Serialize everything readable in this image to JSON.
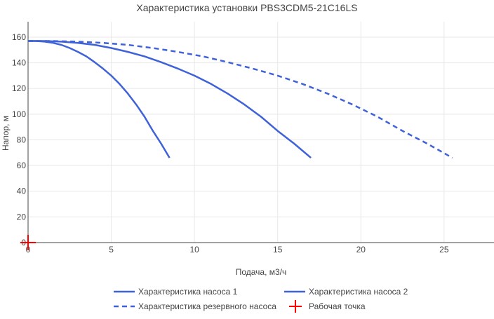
{
  "chart_data": {
    "type": "line",
    "title": "Характеристика установки PBS3CDM5-21C16LS",
    "xlabel": "Подача, м3/ч",
    "ylabel": "Напор, м",
    "xlim": [
      0,
      28
    ],
    "ylim": [
      0,
      172
    ],
    "xticks": [
      0,
      5,
      10,
      15,
      20,
      25
    ],
    "yticks": [
      0,
      20,
      40,
      60,
      80,
      100,
      120,
      140,
      160
    ],
    "grid": true,
    "legend_position": "bottom",
    "series": [
      {
        "name": "Характеристика насоса 1",
        "style": "solid",
        "color": "#3f62d8",
        "x": [
          0,
          0.5,
          1,
          1.5,
          2,
          2.5,
          3,
          3.5,
          4,
          4.5,
          5,
          5.5,
          6,
          6.5,
          7,
          7.5,
          8,
          8.5
        ],
        "y": [
          157,
          157,
          156.5,
          155.5,
          154,
          151.5,
          148.5,
          145,
          140.5,
          135.5,
          130,
          123.5,
          116,
          107.5,
          98,
          87,
          77,
          66
        ]
      },
      {
        "name": "Характеристика насоса 2",
        "style": "solid",
        "color": "#3f62d8",
        "x": [
          0,
          1,
          2,
          3,
          4,
          5,
          6,
          7,
          8,
          9,
          10,
          11,
          12,
          13,
          14,
          15,
          16,
          17
        ],
        "y": [
          157,
          157,
          156.5,
          155.5,
          154,
          151.5,
          148.5,
          145,
          140.5,
          135.5,
          130,
          123.5,
          116,
          107.5,
          98,
          87,
          77,
          66
        ]
      },
      {
        "name": "Характеристика резервного насоса",
        "style": "dashed",
        "color": "#3f62d8",
        "x": [
          0,
          1.5,
          3,
          4.5,
          6,
          7.5,
          9,
          10.5,
          12,
          13.5,
          15,
          16.5,
          18,
          19.5,
          21,
          22.5,
          24,
          25.5
        ],
        "y": [
          157,
          157,
          156.5,
          155.5,
          154,
          151.5,
          148.5,
          145,
          140.5,
          135.5,
          130,
          123.5,
          116,
          107.5,
          98,
          87,
          77,
          66
        ]
      },
      {
        "name": "Рабочая точка",
        "style": "marker-cross",
        "color": "#ff0000",
        "x": [
          0
        ],
        "y": [
          0
        ]
      }
    ]
  }
}
